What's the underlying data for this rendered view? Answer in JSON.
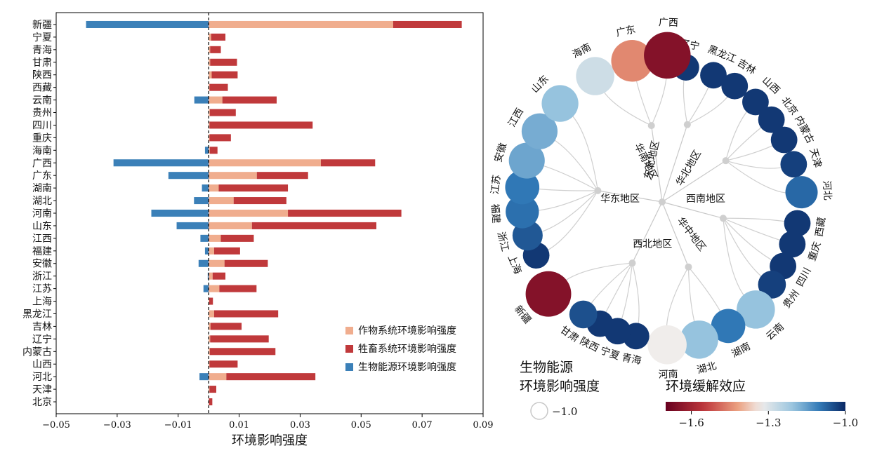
{
  "chart_data": [
    {
      "type": "bar",
      "orientation": "horizontal",
      "stacked": true,
      "xlabel": "环境影响强度",
      "xlim": [
        -0.05,
        0.09
      ],
      "xticks": [
        "−0.05",
        "−0.03",
        "−0.01",
        "0.01",
        "0.03",
        "0.05",
        "0.07",
        "0.09"
      ],
      "categories": [
        "新疆",
        "宁夏",
        "青海",
        "甘肃",
        "陕西",
        "西藏",
        "云南",
        "贵州",
        "四川",
        "重庆",
        "海南",
        "广西",
        "广东",
        "湖南",
        "湖北",
        "河南",
        "山东",
        "江西",
        "福建",
        "安徽",
        "浙江",
        "江苏",
        "上海",
        "黑龙江",
        "吉林",
        "辽宁",
        "内蒙古",
        "山西",
        "河北",
        "天津",
        "北京"
      ],
      "series": [
        {
          "name": "作物系统环境影响强度",
          "color": "#f0ad8e",
          "values": [
            0.0605,
            0.0008,
            0.0005,
            0.0005,
            0.001,
            0.0003,
            0.0045,
            0.0004,
            0.0003,
            0.0003,
            0.0004,
            0.0368,
            0.0158,
            0.0033,
            0.0082,
            0.026,
            0.0142,
            0.004,
            0.0018,
            0.0052,
            0.0013,
            0.0035,
            0.0002,
            0.0018,
            0.0006,
            0.0005,
            0.0004,
            0.0003,
            0.0058,
            0.0003,
            0.0001
          ]
        },
        {
          "name": "牲畜系统环境影响强度",
          "color": "#c0393b",
          "values": [
            0.0225,
            0.0047,
            0.0035,
            0.0088,
            0.0085,
            0.006,
            0.0178,
            0.0085,
            0.0338,
            0.007,
            0.0025,
            0.0178,
            0.0168,
            0.0227,
            0.0173,
            0.0372,
            0.0408,
            0.0108,
            0.0085,
            0.0142,
            0.0042,
            0.0122,
            0.0012,
            0.021,
            0.0102,
            0.0192,
            0.0215,
            0.0092,
            0.0292,
            0.0022,
            0.0011
          ]
        },
        {
          "name": "生物能源环境影响强度",
          "color": "#3b80b8",
          "values": [
            -0.0402,
            0,
            0,
            0,
            0,
            0,
            -0.0047,
            0,
            0,
            0,
            -0.0012,
            -0.0312,
            -0.0132,
            -0.0022,
            -0.0048,
            -0.0188,
            -0.0105,
            -0.0027,
            -0.0012,
            -0.0033,
            -0.0003,
            -0.0017,
            0,
            0,
            0,
            0,
            0,
            0,
            -0.003,
            0,
            0
          ]
        }
      ],
      "legend_position": "bottom-right"
    },
    {
      "type": "dendrogram",
      "legend_title_line1": "生物能源",
      "legend_title_line2": "环境影响强度",
      "legend_size_label": "−1.0",
      "colorbar_title": "环境缓解效应",
      "colorbar_ticks": [
        "−1.6",
        "−1.3",
        "−1.0"
      ],
      "colorbar_range": [
        -1.7,
        -1.0
      ],
      "groups": [
        {
          "name": "东北地区",
          "leaves": [
            {
              "name": "辽宁",
              "effect": -1.02,
              "size": 0.5
            },
            {
              "name": "黑龙江",
              "effect": -1.02,
              "size": 0.5
            },
            {
              "name": "吉林",
              "effect": -1.02,
              "size": 0.5
            }
          ]
        },
        {
          "name": "华北地区",
          "leaves": [
            {
              "name": "山西",
              "effect": -1.02,
              "size": 0.5
            },
            {
              "name": "北京",
              "effect": -1.02,
              "size": 0.5
            },
            {
              "name": "内蒙古",
              "effect": -1.02,
              "size": 0.5
            },
            {
              "name": "天津",
              "effect": -1.03,
              "size": 0.5
            },
            {
              "name": "河北",
              "effect": -1.08,
              "size": 1.0
            }
          ]
        },
        {
          "name": "西南地区",
          "leaves": [
            {
              "name": "西藏",
              "effect": -1.02,
              "size": 0.5
            },
            {
              "name": "重庆",
              "effect": -1.02,
              "size": 0.5
            },
            {
              "name": "四川",
              "effect": -1.02,
              "size": 0.5
            },
            {
              "name": "贵州",
              "effect": -1.03,
              "size": 0.6
            },
            {
              "name": "云南",
              "effect": -1.2,
              "size": 1.7
            }
          ]
        },
        {
          "name": "华中地区",
          "leaves": [
            {
              "name": "湖南",
              "effect": -1.1,
              "size": 1.2
            },
            {
              "name": "湖北",
              "effect": -1.2,
              "size": 1.7
            },
            {
              "name": "河南",
              "effect": -1.33,
              "size": 1.8
            }
          ]
        },
        {
          "name": "西北地区",
          "leaves": [
            {
              "name": "青海",
              "effect": -1.02,
              "size": 0.5
            },
            {
              "name": "宁夏",
              "effect": -1.02,
              "size": 0.5
            },
            {
              "name": "陕西",
              "effect": -1.02,
              "size": 0.5
            },
            {
              "name": "甘肃",
              "effect": -1.05,
              "size": 0.6
            },
            {
              "name": "新疆",
              "effect": -1.65,
              "size": 2.8
            }
          ]
        },
        {
          "name": "华东地区",
          "leaves": [
            {
              "name": "上海",
              "effect": -1.02,
              "size": 0.5
            },
            {
              "name": "浙江",
              "effect": -1.06,
              "size": 0.8
            },
            {
              "name": "福建",
              "effect": -1.09,
              "size": 1.1
            },
            {
              "name": "江苏",
              "effect": -1.1,
              "size": 1.2
            },
            {
              "name": "安徽",
              "effect": -1.16,
              "size": 1.4
            },
            {
              "name": "江西",
              "effect": -1.17,
              "size": 1.4
            },
            {
              "name": "山东",
              "effect": -1.2,
              "size": 1.5
            }
          ]
        },
        {
          "name": "华南地区",
          "leaves": [
            {
              "name": "海南",
              "effect": -1.28,
              "size": 1.7
            },
            {
              "name": "广东",
              "effect": -1.45,
              "size": 2.2
            },
            {
              "name": "广西",
              "effect": -1.65,
              "size": 3.0
            }
          ]
        }
      ]
    }
  ]
}
